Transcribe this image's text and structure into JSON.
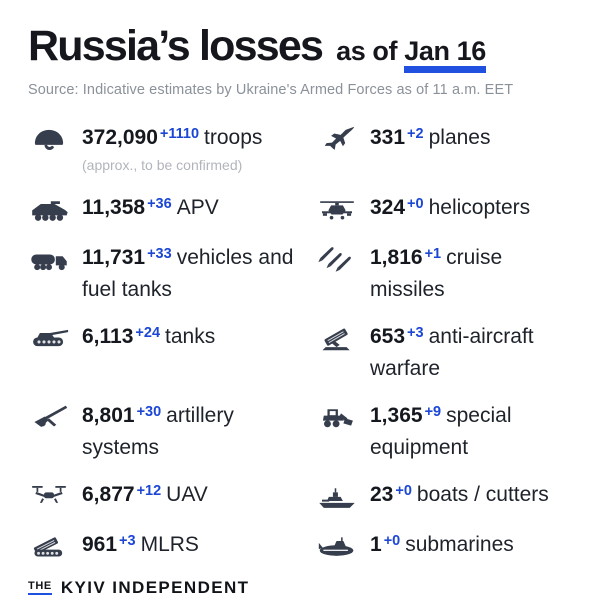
{
  "title": {
    "main": "Russia’s losses",
    "suffix": "as of",
    "date": "Jan 16"
  },
  "source": "Source: Indicative estimates by Ukraine's Armed Forces as of 11 a.m. EET",
  "colors": {
    "accent_blue": "#2050df",
    "delta_blue": "#1c47d5",
    "icon": "#363d4c",
    "text": "#1e222a",
    "muted": "#8b9199",
    "note_gray": "#b1b5bb"
  },
  "stats": {
    "left": [
      {
        "icon": "helmet-icon",
        "value": "372,090",
        "delta": "+1110",
        "label": "troops",
        "note": "(approx., to be confirmed)"
      },
      {
        "icon": "apv-icon",
        "value": "11,358",
        "delta": "+36",
        "label": "APV"
      },
      {
        "icon": "fuel-truck-icon",
        "value": "11,731",
        "delta": "+33",
        "label": "vehicles and fuel tanks"
      },
      {
        "icon": "tank-icon",
        "value": "6,113",
        "delta": "+24",
        "label": "tanks"
      },
      {
        "icon": "artillery-icon",
        "value": "8,801",
        "delta": "+30",
        "label": "artillery systems"
      },
      {
        "icon": "uav-icon",
        "value": "6,877",
        "delta": "+12",
        "label": "UAV"
      },
      {
        "icon": "mlrs-icon",
        "value": "961",
        "delta": "+3",
        "label": "MLRS"
      }
    ],
    "right": [
      {
        "icon": "jet-icon",
        "value": "331",
        "delta": "+2",
        "label": "planes"
      },
      {
        "icon": "helicopter-icon",
        "value": "324",
        "delta": "+0",
        "label": "helicopters"
      },
      {
        "icon": "cruise-missile-icon",
        "value": "1,816",
        "delta": "+1",
        "label": "cruise missiles"
      },
      {
        "icon": "anti-aircraft-icon",
        "value": "653",
        "delta": "+3",
        "label": "anti-aircraft warfare"
      },
      {
        "icon": "special-equipment-icon",
        "value": "1,365",
        "delta": "+9",
        "label": "special equipment"
      },
      {
        "icon": "boat-icon",
        "value": "23",
        "delta": "+0",
        "label": "boats / cutters"
      },
      {
        "icon": "submarine-icon",
        "value": "1",
        "delta": "+0",
        "label": "submarines"
      }
    ]
  },
  "footer": {
    "the_label": "THE",
    "brand_label": "KYIV INDEPENDENT"
  },
  "chart_data": {
    "type": "table",
    "title": "Russia's losses as of Jan 16",
    "subtitle": "Source: Indicative estimates by Ukraine's Armed Forces as of 11 a.m. EET",
    "columns": [
      "category",
      "total",
      "daily_change"
    ],
    "items": [
      {
        "category": "troops",
        "total": 372090,
        "daily_change": 1110,
        "note": "approx., to be confirmed"
      },
      {
        "category": "planes",
        "total": 331,
        "daily_change": 2
      },
      {
        "category": "APV",
        "total": 11358,
        "daily_change": 36
      },
      {
        "category": "helicopters",
        "total": 324,
        "daily_change": 0
      },
      {
        "category": "vehicles and fuel tanks",
        "total": 11731,
        "daily_change": 33
      },
      {
        "category": "cruise missiles",
        "total": 1816,
        "daily_change": 1
      },
      {
        "category": "tanks",
        "total": 6113,
        "daily_change": 24
      },
      {
        "category": "anti-aircraft warfare",
        "total": 653,
        "daily_change": 3
      },
      {
        "category": "artillery systems",
        "total": 8801,
        "daily_change": 30
      },
      {
        "category": "special equipment",
        "total": 1365,
        "daily_change": 9
      },
      {
        "category": "UAV",
        "total": 6877,
        "daily_change": 12
      },
      {
        "category": "boats / cutters",
        "total": 23,
        "daily_change": 0
      },
      {
        "category": "MLRS",
        "total": 961,
        "daily_change": 3
      },
      {
        "category": "submarines",
        "total": 1,
        "daily_change": 0
      }
    ]
  }
}
